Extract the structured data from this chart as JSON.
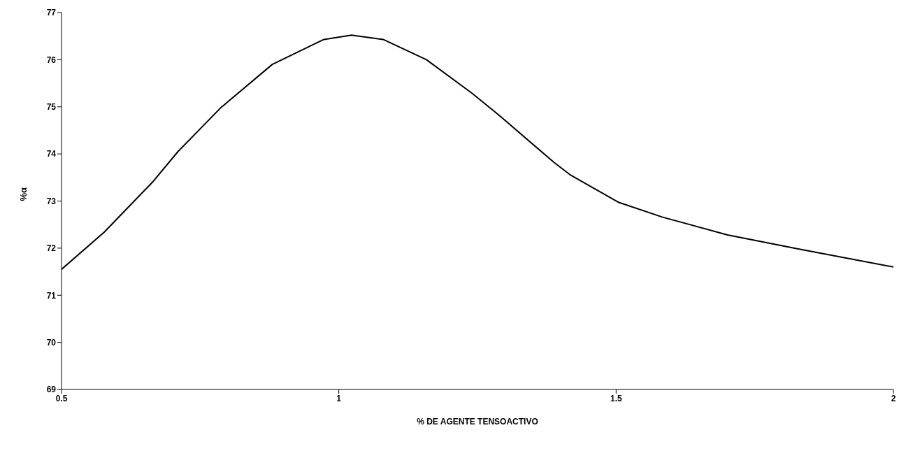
{
  "chart_data": {
    "type": "line",
    "xlabel": "% DE AGENTE TENSOACTIVO",
    "ylabel": "%α",
    "x": [
      0.5,
      0.577,
      0.664,
      0.71,
      0.788,
      0.88,
      0.973,
      1.023,
      1.08,
      1.158,
      1.24,
      1.29,
      1.388,
      1.418,
      1.505,
      1.583,
      1.701,
      1.83,
      2.0
    ],
    "series": [
      {
        "color": "#000000",
        "values": [
          71.55,
          72.34,
          73.4,
          74.05,
          74.99,
          75.9,
          76.43,
          76.52,
          76.43,
          76.0,
          75.29,
          74.81,
          73.82,
          73.55,
          72.97,
          72.66,
          72.28,
          71.98,
          71.6
        ]
      }
    ],
    "xlim": [
      0.5,
      2
    ],
    "ylim": [
      69,
      77
    ],
    "xticks": [
      0.5,
      1,
      1.5,
      2
    ],
    "yticks": [
      69,
      70,
      71,
      72,
      73,
      74,
      75,
      76,
      77
    ],
    "grid": false,
    "legend": false,
    "marker": "none",
    "line_style": "solid"
  }
}
